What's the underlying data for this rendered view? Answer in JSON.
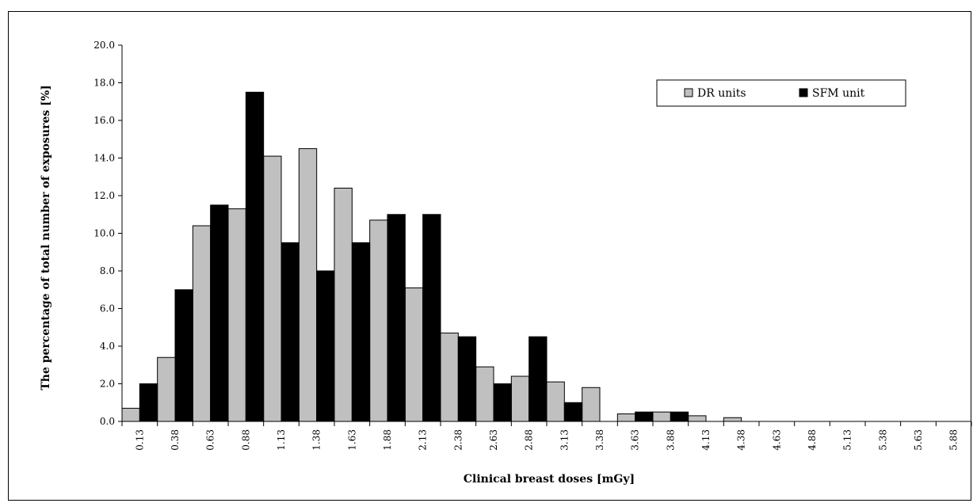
{
  "chart_data": {
    "type": "bar",
    "xlabel": "Clinical breast doses [mGy]",
    "ylabel": "The percentage of total number of exposures [%]",
    "ylim": [
      0,
      20
    ],
    "yticks": [
      "0.0",
      "2.0",
      "4.0",
      "6.0",
      "8.0",
      "10.0",
      "12.0",
      "14.0",
      "16.0",
      "18.0",
      "20.0"
    ],
    "categories": [
      "0.13",
      "0.38",
      "0.63",
      "0.88",
      "1.13",
      "1.38",
      "1.63",
      "1.88",
      "2.13",
      "2.38",
      "2.63",
      "2.88",
      "3.13",
      "3.38",
      "3.63",
      "3.88",
      "4.13",
      "4.38",
      "4.63",
      "4.88",
      "5.13",
      "5.38",
      "5.63",
      "5.88"
    ],
    "legend_position": "top-right",
    "grid": false,
    "series": [
      {
        "name": "DR units",
        "color": "#c0c0c0",
        "values": [
          0.7,
          3.4,
          10.4,
          11.3,
          14.1,
          14.5,
          12.4,
          10.7,
          7.1,
          4.7,
          2.9,
          2.4,
          2.1,
          1.8,
          0.4,
          0.5,
          0.3,
          0.2,
          0,
          0,
          0,
          0,
          0,
          0
        ]
      },
      {
        "name": "SFM unit",
        "color": "#000000",
        "values": [
          2.0,
          7.0,
          11.5,
          17.5,
          9.5,
          8.0,
          9.5,
          11.0,
          11.0,
          4.5,
          2.0,
          4.5,
          1.0,
          0,
          0.5,
          0.5,
          0,
          0,
          0,
          0,
          0,
          0,
          0,
          0
        ]
      }
    ]
  }
}
